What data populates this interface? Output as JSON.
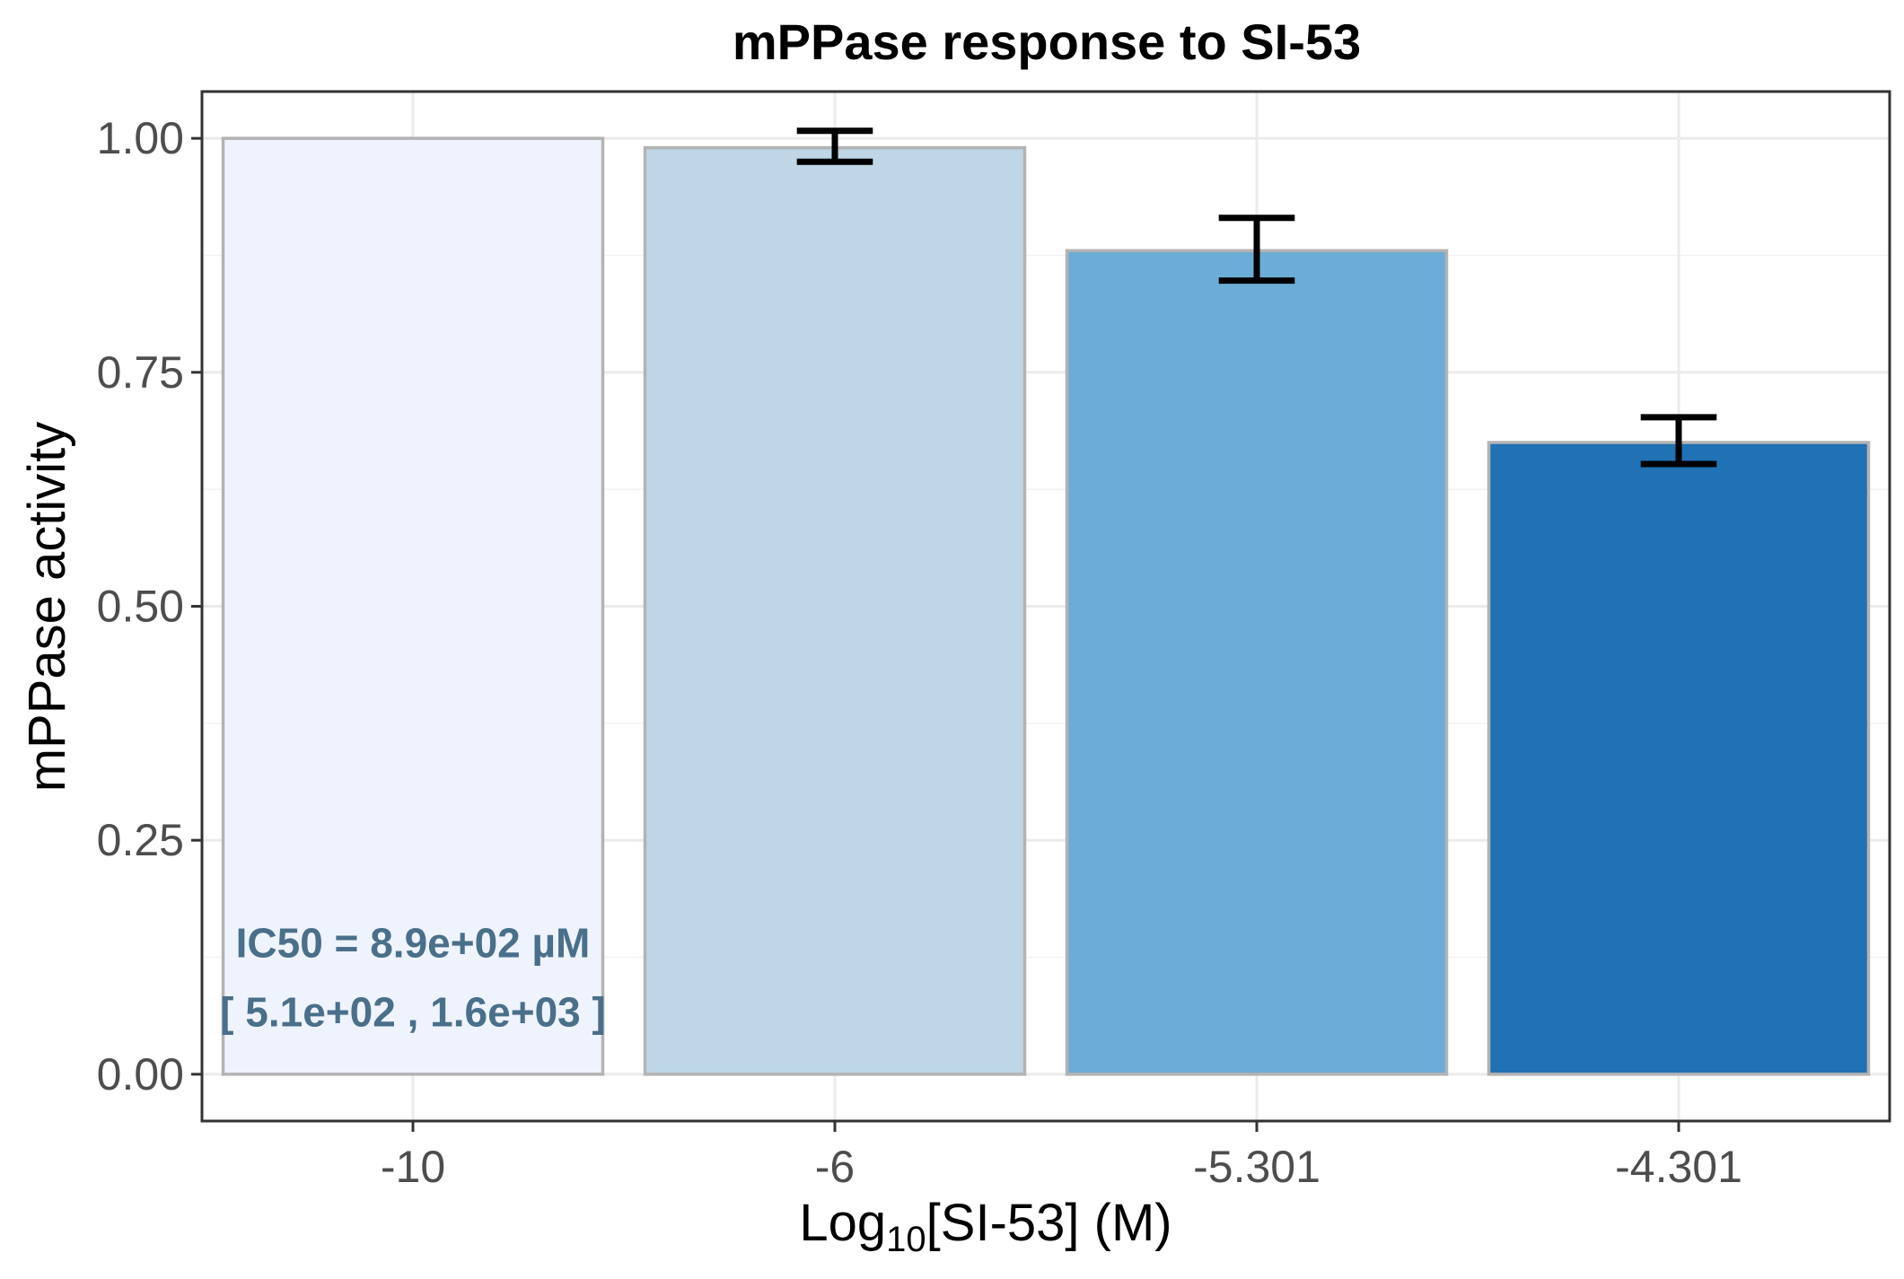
{
  "chart_data": {
    "type": "bar",
    "title": "mPPase response to SI-53",
    "xlabel": {
      "prefix": "Log",
      "subscript": "10",
      "suffix": "[SI-53] (M)"
    },
    "ylabel": "mPPase activity",
    "categories": [
      "-10",
      "-6",
      "-5.301",
      "-4.301"
    ],
    "values": [
      1.0,
      0.99,
      0.88,
      0.675
    ],
    "error_low": [
      null,
      0.975,
      0.848,
      0.652
    ],
    "error_high": [
      null,
      1.008,
      0.915,
      0.702
    ],
    "bar_colors": [
      "#eef3fe",
      "#bed6e6",
      "#6badd6",
      "#2171b5"
    ],
    "bar_outline": "#b3b3b3",
    "ylim": [
      -0.05,
      1.05
    ],
    "yticks": [
      0.0,
      0.25,
      0.5,
      0.75,
      1.0
    ],
    "ytick_labels": [
      "0.00",
      "0.25",
      "0.50",
      "0.75",
      "1.00"
    ],
    "grid": true,
    "annotation": {
      "lines": [
        "IC50 = 8.9e+02 µM",
        "[ 5.1e+02 , 1.6e+03 ]"
      ],
      "color": "#4a6f8a"
    }
  }
}
